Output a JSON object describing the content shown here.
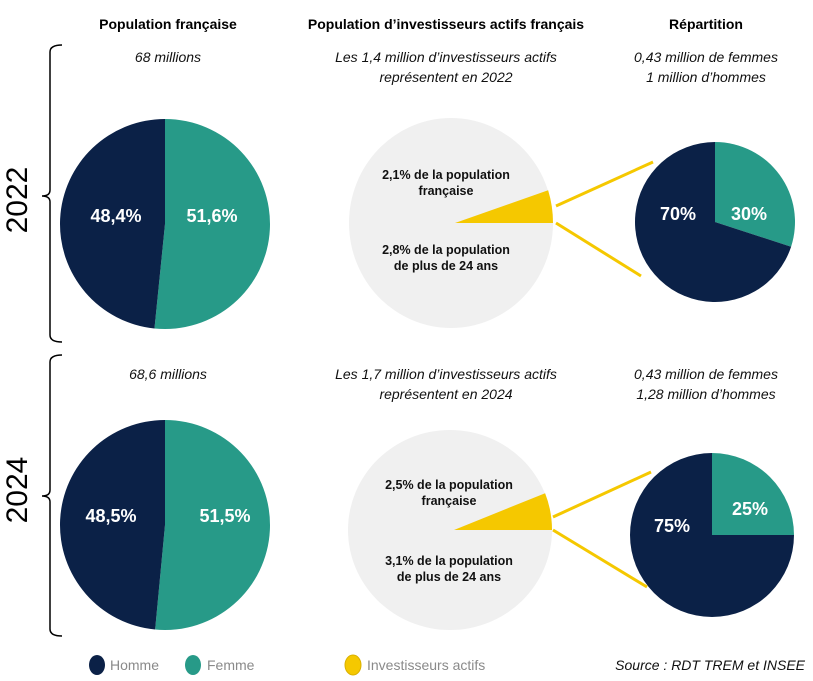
{
  "colors": {
    "homme": "#0b2147",
    "femme": "#279a88",
    "investisseurs": "#f5c800",
    "population": "#f0f0f0"
  },
  "headers": [
    "Population française",
    "Population d’investisseurs actifs français",
    "Répartition"
  ],
  "chart_data": [
    {
      "type": "pie",
      "year": "2022",
      "subtitle": "68 millions",
      "slices": [
        {
          "name": "Homme",
          "value": 48.4,
          "label": "48,4%"
        },
        {
          "name": "Femme",
          "value": 51.6,
          "label": "51,6%"
        }
      ]
    },
    {
      "type": "pie",
      "year": "2022",
      "subtitle": [
        "Les 1,4 million d’investisseurs actifs",
        "représentent en 2022"
      ],
      "slices": [
        {
          "name": "Investisseurs actifs",
          "value": 2.1
        }
      ],
      "labels": [
        [
          "2,1% de la population",
          "française"
        ],
        [
          "2,8% de la population",
          "de plus de 24 ans"
        ]
      ]
    },
    {
      "type": "pie",
      "year": "2022",
      "subtitle": [
        "0,43 million de femmes",
        "1 million d’hommes"
      ],
      "slices": [
        {
          "name": "Homme",
          "value": 70,
          "label": "70%"
        },
        {
          "name": "Femme",
          "value": 30,
          "label": "30%"
        }
      ]
    },
    {
      "type": "pie",
      "year": "2024",
      "subtitle": "68,6 millions",
      "slices": [
        {
          "name": "Homme",
          "value": 48.5,
          "label": "48,5%"
        },
        {
          "name": "Femme",
          "value": 51.5,
          "label": "51,5%"
        }
      ]
    },
    {
      "type": "pie",
      "year": "2024",
      "subtitle": [
        "Les 1,7 million d’investisseurs actifs",
        "représentent en 2024"
      ],
      "slices": [
        {
          "name": "Investisseurs actifs",
          "value": 2.5
        }
      ],
      "labels": [
        [
          "2,5% de la population",
          "française"
        ],
        [
          "3,1% de la population",
          "de plus de 24 ans"
        ]
      ]
    },
    {
      "type": "pie",
      "year": "2024",
      "subtitle": [
        "0,43 million de femmes",
        "1,28 million d’hommes"
      ],
      "slices": [
        {
          "name": "Homme",
          "value": 75,
          "label": "75%"
        },
        {
          "name": "Femme",
          "value": 25,
          "label": "25%"
        }
      ]
    }
  ],
  "legend": [
    "Homme",
    "Femme",
    "Investisseurs actifs"
  ],
  "source": "Source : RDT TREM et INSEE"
}
